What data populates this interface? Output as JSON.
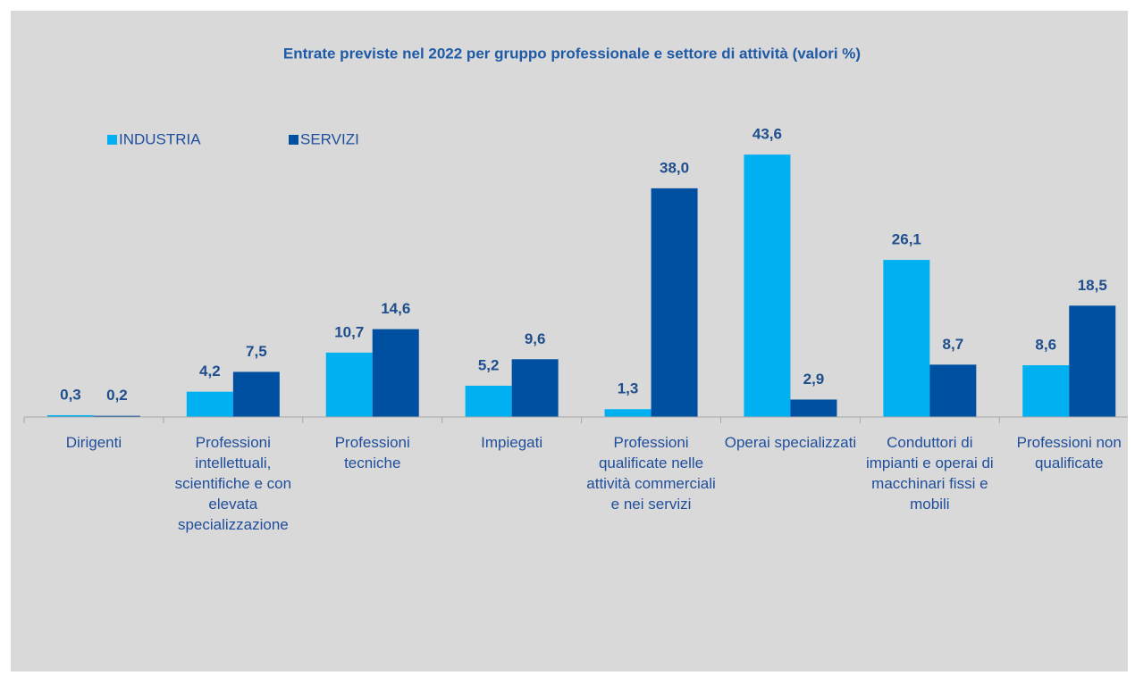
{
  "chart_data": {
    "type": "bar",
    "title": "Entrate previste nel 2022 per gruppo professionale e settore di attività (valori %)",
    "categories": [
      "Dirigenti",
      "Professioni intellettuali, scientifiche e con elevata specializzazione",
      "Professioni tecniche",
      "Impiegati",
      "Professioni qualificate nelle attività commerciali e nei servizi",
      "Operai specializzati",
      "Conduttori di impianti e operai di macchinari fissi e mobili",
      "Professioni non qualificate"
    ],
    "series": [
      {
        "name": "INDUSTRIA",
        "color": "#00b0f0",
        "values": [
          0.3,
          4.2,
          10.7,
          5.2,
          1.3,
          43.6,
          26.1,
          8.6
        ],
        "value_labels": [
          "0,3",
          "4,2",
          "10,7",
          "5,2",
          "1,3",
          "43,6",
          "26,1",
          "8,6"
        ]
      },
      {
        "name": "SERVIZI",
        "color": "#0050a2",
        "values": [
          0.2,
          7.5,
          14.6,
          9.6,
          38.0,
          2.9,
          8.7,
          18.5
        ],
        "value_labels": [
          "0,2",
          "7,5",
          "14,6",
          "9,6",
          "38,0",
          "2,9",
          "8,7",
          "18,5"
        ]
      }
    ],
    "ylim": [
      0,
      50
    ],
    "legend": "top-left"
  }
}
